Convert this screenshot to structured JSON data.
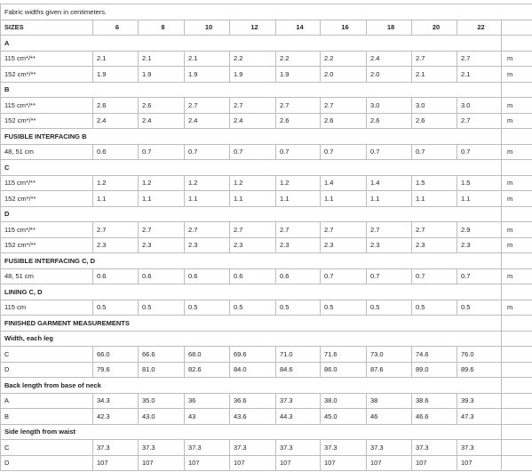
{
  "caption": "Fabric widths given in centimeters.",
  "header": {
    "label": "SIZES",
    "sizes": [
      "6",
      "8",
      "10",
      "12",
      "14",
      "16",
      "18",
      "20",
      "22"
    ]
  },
  "rows": [
    {
      "heading": "A"
    },
    {
      "label": "115 cm*/**",
      "values": [
        "2.1",
        "2.1",
        "2.1",
        "2.2",
        "2.2",
        "2.2",
        "2.4",
        "2.7",
        "2.7"
      ],
      "unit": "m"
    },
    {
      "label": "152 cm*/**",
      "values": [
        "1.9",
        "1.9",
        "1.9",
        "1.9",
        "1.9",
        "2.0",
        "2.0",
        "2.1",
        "2.1"
      ],
      "unit": "m"
    },
    {
      "heading": "B"
    },
    {
      "label": "115 cm*/**",
      "values": [
        "2.6",
        "2.6",
        "2.7",
        "2.7",
        "2.7",
        "2.7",
        "3.0",
        "3.0",
        "3.0"
      ],
      "unit": "m"
    },
    {
      "label": "152 cm*/**",
      "values": [
        "2.4",
        "2.4",
        "2.4",
        "2.4",
        "2.6",
        "2.6",
        "2.6",
        "2.6",
        "2.7"
      ],
      "unit": "m"
    },
    {
      "heading": "FUSIBLE INTERFACING B"
    },
    {
      "label": "48, 51 cm",
      "values": [
        "0.6",
        "0.7",
        "0.7",
        "0.7",
        "0.7",
        "0.7",
        "0.7",
        "0.7",
        "0.7"
      ],
      "unit": "m"
    },
    {
      "heading": "C"
    },
    {
      "label": "115 cm*/**",
      "values": [
        "1.2",
        "1.2",
        "1.2",
        "1.2",
        "1.2",
        "1.4",
        "1.4",
        "1.5",
        "1.5"
      ],
      "unit": "m"
    },
    {
      "label": "152 cm*/**",
      "values": [
        "1.1",
        "1.1",
        "1.1",
        "1.1",
        "1.1",
        "1.1",
        "1.1",
        "1.1",
        "1.1"
      ],
      "unit": "m"
    },
    {
      "heading": "D"
    },
    {
      "label": "115 cm*/**",
      "values": [
        "2.7",
        "2.7",
        "2.7",
        "2.7",
        "2.7",
        "2.7",
        "2.7",
        "2.7",
        "2.9"
      ],
      "unit": "m"
    },
    {
      "label": "152 cm*/**",
      "values": [
        "2.3",
        "2.3",
        "2.3",
        "2.3",
        "2.3",
        "2.3",
        "2.3",
        "2.3",
        "2.3"
      ],
      "unit": "m"
    },
    {
      "heading": "FUSIBLE INTERFACING C, D"
    },
    {
      "label": "48, 51 cm",
      "values": [
        "0.6",
        "0.6",
        "0.6",
        "0.6",
        "0.6",
        "0.7",
        "0.7",
        "0.7",
        "0.7"
      ],
      "unit": "m"
    },
    {
      "heading": "LINING C, D"
    },
    {
      "label": "115 cm",
      "values": [
        "0.5",
        "0.5",
        "0.5",
        "0.5",
        "0.5",
        "0.5",
        "0.5",
        "0.5",
        "0.5"
      ],
      "unit": "m"
    },
    {
      "heading": "FINISHED GARMENT MEASUREMENTS"
    },
    {
      "heading": "Width, each leg"
    },
    {
      "label": "C",
      "values": [
        "66.0",
        "66.6",
        "68.0",
        "69.6",
        "71.0",
        "71.6",
        "73.0",
        "74.6",
        "76.0"
      ]
    },
    {
      "label": "D",
      "values": [
        "79.6",
        "81.0",
        "82.6",
        "84.0",
        "84.6",
        "86.0",
        "87.6",
        "89.0",
        "89.6"
      ]
    },
    {
      "heading": "Back length from base of neck"
    },
    {
      "label": "A",
      "values": [
        "34.3",
        "35.0",
        "36",
        "36.6",
        "37.3",
        "38.0",
        "38",
        "38.6",
        "39.3"
      ]
    },
    {
      "label": "B",
      "values": [
        "42.3",
        "43.0",
        "43",
        "43.6",
        "44.3",
        "45.0",
        "46",
        "46.6",
        "47.3"
      ]
    },
    {
      "heading": "Side length from waist"
    },
    {
      "label": "C",
      "values": [
        "37.3",
        "37.3",
        "37.3",
        "37.3",
        "37.3",
        "37.3",
        "37.3",
        "37.3",
        "37.3"
      ]
    },
    {
      "label": "D",
      "values": [
        "107",
        "107",
        "107",
        "107",
        "107",
        "107",
        "107",
        "107",
        "107"
      ]
    }
  ]
}
